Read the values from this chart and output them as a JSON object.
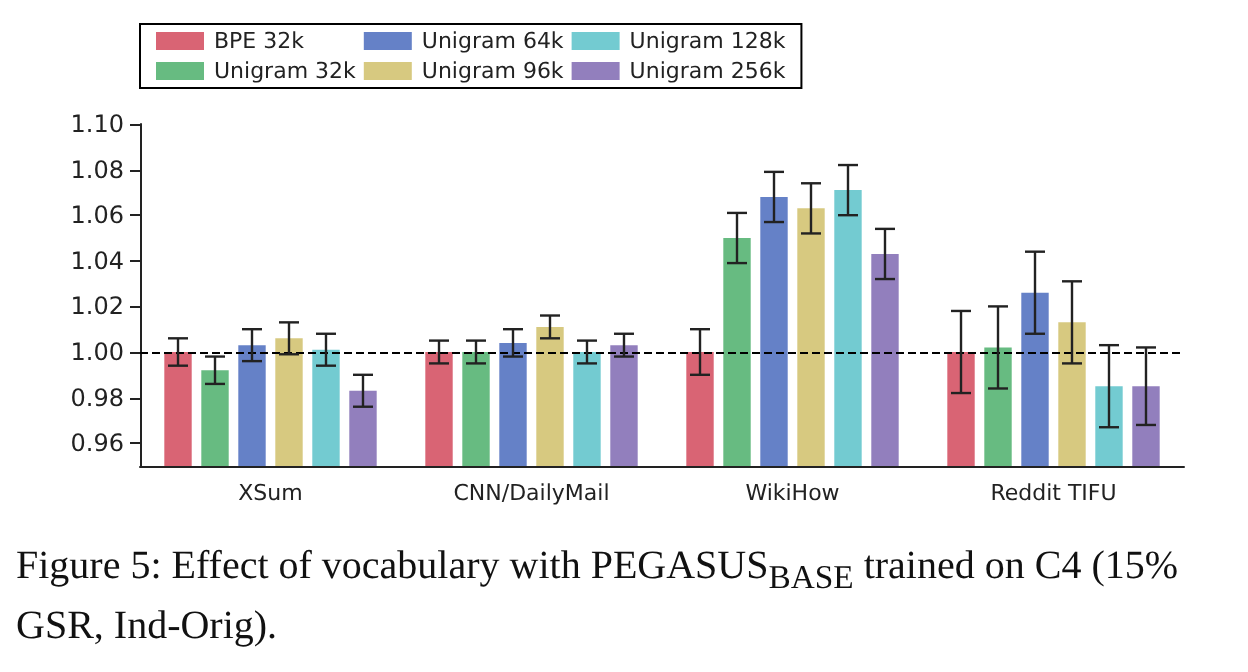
{
  "chart_data": {
    "type": "bar",
    "categories": [
      "XSum",
      "CNN/DailyMail",
      "WikiHow",
      "Reddit TIFU"
    ],
    "series": [
      {
        "name": "BPE 32k",
        "color": "#d2495c",
        "values": [
          1.0,
          1.0,
          1.0,
          1.0
        ],
        "errors": [
          0.006,
          0.005,
          0.01,
          0.018
        ]
      },
      {
        "name": "Unigram 32k",
        "color": "#4caf6b",
        "values": [
          0.992,
          1.0,
          1.05,
          1.002
        ],
        "errors": [
          0.006,
          0.005,
          0.011,
          0.018
        ]
      },
      {
        "name": "Unigram 64k",
        "color": "#4a6bbd",
        "values": [
          1.003,
          1.004,
          1.068,
          1.026
        ],
        "errors": [
          0.007,
          0.006,
          0.011,
          0.018
        ]
      },
      {
        "name": "Unigram 96k",
        "color": "#d0c06a",
        "values": [
          1.006,
          1.011,
          1.063,
          1.013
        ],
        "errors": [
          0.007,
          0.005,
          0.011,
          0.018
        ]
      },
      {
        "name": "Unigram 128k",
        "color": "#5bc2c9",
        "values": [
          1.001,
          1.0,
          1.071,
          0.985
        ],
        "errors": [
          0.007,
          0.005,
          0.011,
          0.018
        ]
      },
      {
        "name": "Unigram 256k",
        "color": "#7f69b2",
        "values": [
          0.983,
          1.003,
          1.043,
          0.985
        ],
        "errors": [
          0.007,
          0.005,
          0.011,
          0.017
        ]
      }
    ],
    "ylim": [
      0.95,
      1.1
    ],
    "yticks": [
      0.96,
      0.98,
      {
        "value": 1.0,
        "label": "1.00"
      },
      1.02,
      1.04,
      1.06,
      1.08,
      {
        "value": 1.1,
        "label": "1.10"
      }
    ],
    "ref_lines": [
      {
        "axis": "y",
        "value": 1.0,
        "color": "#000000",
        "line_style": "dashed"
      }
    ],
    "grid": false,
    "legend": "top",
    "annotations": [
      "Figure 5: Effect of vocabulary with PEGASUS$_{BASE}$ trained on C4 (15% GSR, Ind-Orig)."
    ]
  }
}
